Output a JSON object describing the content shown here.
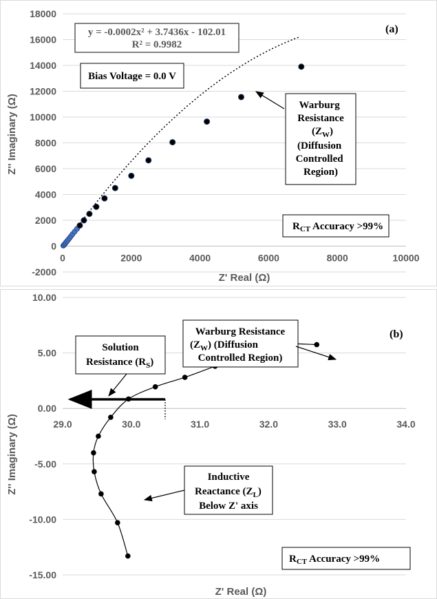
{
  "chart_data": [
    {
      "type": "scatter",
      "panel_label": "(a)",
      "xlabel": "Z' Real (Ω)",
      "ylabel": "Z'' Imaginary (Ω)",
      "xlim": [
        0,
        10000
      ],
      "ylim": [
        -2000,
        18000
      ],
      "xticks": [
        "0",
        "2000",
        "4000",
        "6000",
        "8000",
        "10000"
      ],
      "yticks": [
        "-2000",
        "0",
        "2000",
        "4000",
        "6000",
        "8000",
        "10000",
        "12000",
        "14000",
        "16000",
        "18000"
      ],
      "grid": "horizontal",
      "trendline": {
        "type": "polynomial-2",
        "equation": "y = -0.0002x² + 3.7436x - 102.01",
        "r_squared": "R² = 0.9982",
        "coefficients": [
          -0.0002,
          3.7436,
          -102.01
        ],
        "x_range": [
          40,
          6900
        ]
      },
      "x": [
        20,
        40,
        60,
        80,
        100,
        130,
        160,
        200,
        240,
        290,
        350,
        420,
        500,
        620,
        780,
        980,
        1220,
        1530,
        2000,
        2500,
        3200,
        4200,
        5200,
        6950
      ],
      "y": [
        40,
        90,
        150,
        220,
        300,
        390,
        490,
        620,
        760,
        930,
        1120,
        1340,
        1600,
        2000,
        2500,
        3050,
        3700,
        4500,
        5450,
        6650,
        8050,
        9650,
        11550,
        13900
      ],
      "annotations": {
        "bias": "Bias Voltage = 0.0 V",
        "warburg_lines": [
          "Warburg",
          "Resistance",
          "(Z",
          "W",
          ")",
          "(Diffusion",
          "Controlled",
          "Region)"
        ],
        "accuracy_main": "R",
        "accuracy_sub": "CT",
        "accuracy_rest": " Accuracy >99%"
      }
    },
    {
      "type": "line",
      "panel_label": "(b)",
      "xlabel": "Z' Real (Ω)",
      "ylabel": "Z'' Imaginary (Ω)",
      "xlim": [
        29.0,
        34.0
      ],
      "ylim": [
        -15.0,
        10.0
      ],
      "xticks": [
        "29.0",
        "30.0",
        "31.0",
        "32.0",
        "33.0",
        "34.0"
      ],
      "yticks": [
        "-15.00",
        "-10.00",
        "-5.00",
        "0.00",
        "5.00",
        "10.00"
      ],
      "grid": "horizontal",
      "x": [
        29.95,
        29.8,
        29.56,
        29.46,
        29.45,
        29.52,
        29.7,
        29.96,
        30.35,
        30.78,
        31.22,
        31.67,
        32.12,
        32.7
      ],
      "y": [
        -13.3,
        -10.3,
        -7.7,
        -5.7,
        -4.0,
        -2.5,
        -0.8,
        0.85,
        1.95,
        2.8,
        3.8,
        4.75,
        5.75,
        5.75
      ],
      "annotations": {
        "warburg_line1": "Warburg Resistance",
        "warburg_line2a": "(Z",
        "warburg_line2b": "W",
        "warburg_line2c": ")  (Diffusion",
        "warburg_line3": "Controlled Region)",
        "solution_line1": "Solution",
        "solution_line2a": "Resistance (R",
        "solution_line2b": "S",
        "solution_line2c": ")",
        "inductive_line1": "Inductive",
        "inductive_line2a": "Reactance (Z",
        "inductive_line2b": "L",
        "inductive_line2c": ")",
        "inductive_line3": "Below Z' axis",
        "accuracy_main": "R",
        "accuracy_sub": "CT",
        "accuracy_rest": " Accuracy >99%"
      }
    }
  ]
}
